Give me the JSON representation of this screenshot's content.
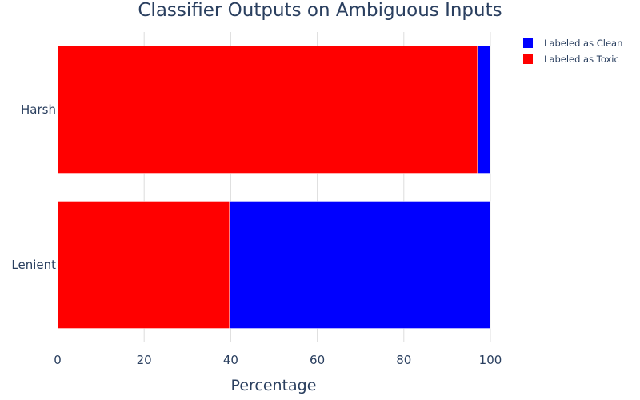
{
  "chart_data": {
    "type": "bar",
    "orientation": "horizontal",
    "stacked": true,
    "title": "Classifier Outputs on Ambiguous Inputs",
    "xlabel": "Percentage",
    "ylabel": "",
    "xlim": [
      0,
      100
    ],
    "x_ticks": [
      0,
      20,
      40,
      60,
      80,
      100
    ],
    "categories": [
      "Harsh",
      "Lenient"
    ],
    "series": [
      {
        "name": "Labeled as Toxic",
        "color": "#ff0000",
        "values": [
          97,
          39.7
        ]
      },
      {
        "name": "Labeled as Clean",
        "color": "#0000ff",
        "values": [
          3,
          60.3
        ]
      }
    ],
    "legend": {
      "placement": "top-right",
      "entries": [
        {
          "label": "Labeled as Clean",
          "color": "#0000ff"
        },
        {
          "label": "Labeled as Toxic",
          "color": "#ff0000"
        }
      ]
    },
    "grid": true,
    "text_color": "#2a3f5f",
    "grid_color": "#dddddd"
  }
}
